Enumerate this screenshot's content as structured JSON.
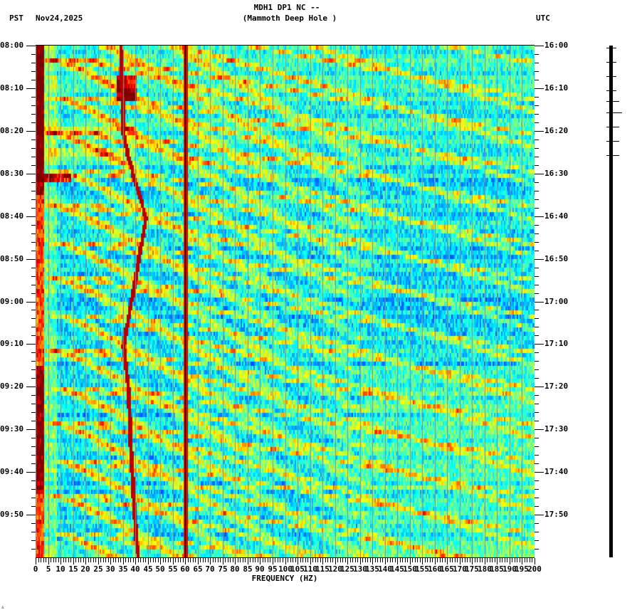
{
  "header": {
    "station_line": "MDH1 DP1 NC --",
    "location_line": "(Mammoth Deep Hole )",
    "left_timezone": "PST",
    "date": "Nov24,2025",
    "right_timezone": "UTC"
  },
  "footer": {
    "corner_mark": "∴"
  },
  "colors": {
    "colormap": [
      "#00008f",
      "#0000ff",
      "#0080ff",
      "#00ffff",
      "#80ff80",
      "#ffff00",
      "#ff8000",
      "#ff0000",
      "#800000"
    ],
    "gridline": "#8c8c8c",
    "axis": "#000000",
    "background": "#ffffff"
  },
  "chart_data": {
    "type": "heatmap",
    "title": "MDH1 DP1 NC -- (Mammoth Deep Hole )",
    "xlabel": "FREQUENCY (HZ)",
    "ylabel_left": "PST",
    "ylabel_right": "UTC",
    "xlim": [
      0,
      200
    ],
    "x_ticks": [
      0,
      5,
      10,
      15,
      20,
      25,
      30,
      35,
      40,
      45,
      50,
      55,
      60,
      65,
      70,
      75,
      80,
      85,
      90,
      95,
      100,
      105,
      110,
      115,
      120,
      125,
      130,
      135,
      140,
      145,
      150,
      155,
      160,
      165,
      170,
      175,
      180,
      185,
      190,
      195,
      200
    ],
    "x_minor_tick_step": 1,
    "y_ticks_left": [
      "08:00",
      "08:10",
      "08:20",
      "08:30",
      "08:40",
      "08:50",
      "09:00",
      "09:10",
      "09:20",
      "09:30",
      "09:40",
      "09:50"
    ],
    "y_ticks_right": [
      "16:00",
      "16:10",
      "16:20",
      "16:30",
      "16:40",
      "16:50",
      "17:00",
      "17:10",
      "17:20",
      "17:30",
      "17:40",
      "17:50"
    ],
    "y_minor_tick_minutes": 2,
    "time_range_minutes": 120,
    "grid": {
      "vertical_every_hz": 5
    },
    "features": [
      {
        "name": "60 Hz power-line hum",
        "freq_hz": 60,
        "intensity": "max",
        "span": "full"
      },
      {
        "name": "low-frequency energy",
        "freq_hz_range": [
          0,
          3
        ],
        "intensity": "high",
        "span": "full"
      },
      {
        "name": "drifting narrowband tone",
        "freq_hz_path": [
          [
            0,
            34
          ],
          [
            20,
            35
          ],
          [
            26,
            37
          ],
          [
            40,
            44
          ],
          [
            70,
            35
          ],
          [
            80,
            37
          ],
          [
            95,
            38
          ],
          [
            115,
            40
          ],
          [
            120,
            41
          ]
        ],
        "intensity": "high"
      },
      {
        "name": "broadband event 08:10",
        "minute": 10,
        "freq_hz_range": [
          32,
          40
        ],
        "intensity": "high"
      },
      {
        "name": "strong low-freq burst 08:30",
        "minute": 30,
        "freq_hz_range": [
          0,
          14
        ],
        "intensity": "high"
      },
      {
        "name": "curved harmonic streaks",
        "count": 14,
        "period_minutes": 8.5,
        "intensity": "medium"
      },
      {
        "name": "brighter background after 09:15",
        "minute_start": 75,
        "freq_hz_range": [
          130,
          200
        ]
      }
    ]
  }
}
